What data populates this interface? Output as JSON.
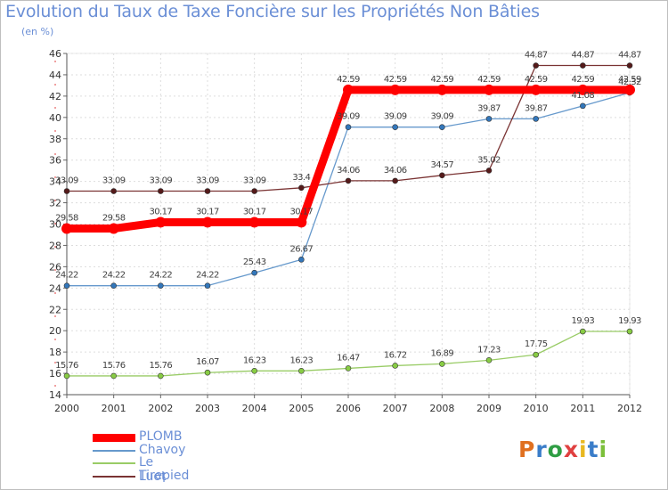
{
  "header": {
    "title": "Evolution du Taux de Taxe Foncière sur les Propriétés Non Bâties",
    "subtitle": "(en %)"
  },
  "chart_data": {
    "type": "line",
    "title": "Evolution du Taux de Taxe Foncière sur les Propriétés Non Bâties",
    "ylabel": "(en %)",
    "xlabel": "",
    "ylim": [
      14,
      46
    ],
    "yticks": [
      14,
      16,
      18,
      20,
      22,
      24,
      26,
      28,
      30,
      32,
      34,
      36,
      38,
      40,
      42,
      44,
      46
    ],
    "categories": [
      "2000",
      "2001",
      "2002",
      "2003",
      "2004",
      "2005",
      "2006",
      "2007",
      "2008",
      "2009",
      "2010",
      "2011",
      "2012"
    ],
    "grid": true,
    "series": [
      {
        "name": "PLOMB",
        "color": "#ff0000",
        "emphasis": "thick",
        "values": [
          29.58,
          29.58,
          30.17,
          30.17,
          30.17,
          30.17,
          42.59,
          42.59,
          42.59,
          42.59,
          42.59,
          42.59,
          42.59
        ],
        "labels": [
          "29.58",
          "29.58",
          "30.17",
          "30.17",
          "30.17",
          "30.17",
          "42.59",
          "42.59",
          "42.59",
          "42.59",
          "42.59",
          "42.59",
          "42.59"
        ]
      },
      {
        "name": "Chavoy",
        "color": "#6699cc",
        "marker": "#3377bb",
        "values": [
          24.22,
          24.22,
          24.22,
          24.22,
          25.43,
          26.67,
          39.09,
          39.09,
          39.09,
          39.87,
          39.87,
          41.08,
          42.32
        ],
        "labels": [
          "24.22",
          "24.22",
          "24.22",
          "24.22",
          "25.43",
          "26.67",
          "39.09",
          "39.09",
          "39.09",
          "39.87",
          "39.87",
          "41.08",
          "42.32"
        ]
      },
      {
        "name": "Le Luot",
        "color": "#99cc66",
        "marker": "#88cc44",
        "values": [
          15.76,
          15.76,
          15.76,
          16.07,
          16.23,
          16.23,
          16.47,
          16.72,
          16.89,
          17.23,
          17.75,
          19.93,
          19.93
        ],
        "labels": [
          "15.76",
          "15.76",
          "15.76",
          "16.07",
          "16.23",
          "16.23",
          "16.47",
          "16.72",
          "16.89",
          "17.23",
          "17.75",
          "19.93",
          "19.93"
        ]
      },
      {
        "name": "Tirepied",
        "color": "#7a3333",
        "marker": "#551a1a",
        "values": [
          33.09,
          33.09,
          33.09,
          33.09,
          33.09,
          33.4,
          34.06,
          34.06,
          34.57,
          35.02,
          44.87,
          44.87,
          44.87
        ],
        "labels": [
          "33.09",
          "33.09",
          "33.09",
          "33.09",
          "33.09",
          "33.4",
          "34.06",
          "34.06",
          "34.57",
          "35.02",
          "44.87",
          "44.87",
          "44.87"
        ]
      }
    ],
    "legend": [
      "PLOMB",
      "Chavoy",
      "Le Luot",
      "Tirepied"
    ],
    "legend_position": "bottom-left"
  },
  "logo": {
    "letters": [
      "P",
      "r",
      "o",
      "x",
      "i",
      "t",
      "i"
    ],
    "colors": [
      "#e07020",
      "#3a7dc9",
      "#2f9e44",
      "#e04040",
      "#e8b820",
      "#3a7dc9",
      "#7bbf3a"
    ]
  }
}
